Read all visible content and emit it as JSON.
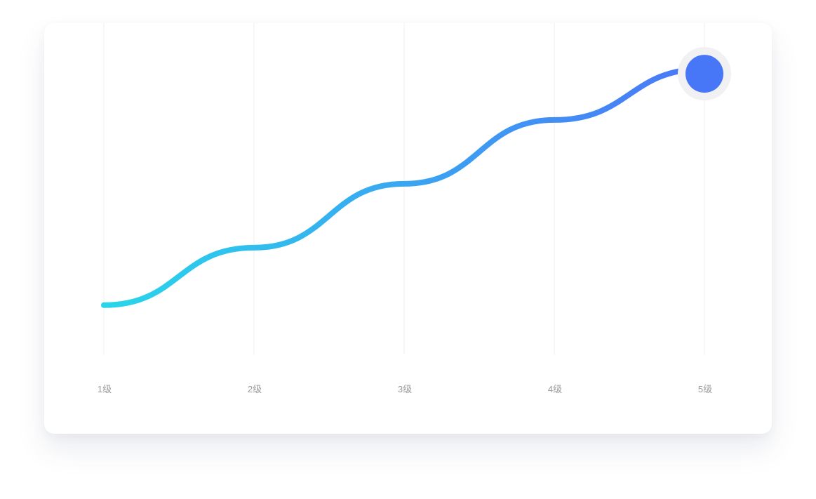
{
  "chart_data": {
    "type": "line",
    "categories": [
      "1级",
      "2级",
      "3级",
      "4级",
      "5级"
    ],
    "x_tick_labels": [
      "1级",
      "2级",
      "3级",
      "4级",
      "5级"
    ],
    "series": [
      {
        "values": [
          20,
          110,
          210,
          310,
          390
        ]
      }
    ],
    "ylim": [
      0,
      400
    ],
    "grid": "vertical",
    "line_style": "smooth",
    "marker": "end-dot",
    "colors": {
      "gradient_start": "#28d6ea",
      "gradient_end": "#4b76f8",
      "end_dot": "#4777f6",
      "end_dot_halo": "#f1f1f3",
      "grid": "#efefef",
      "tick_label": "#9a9a9a"
    }
  }
}
